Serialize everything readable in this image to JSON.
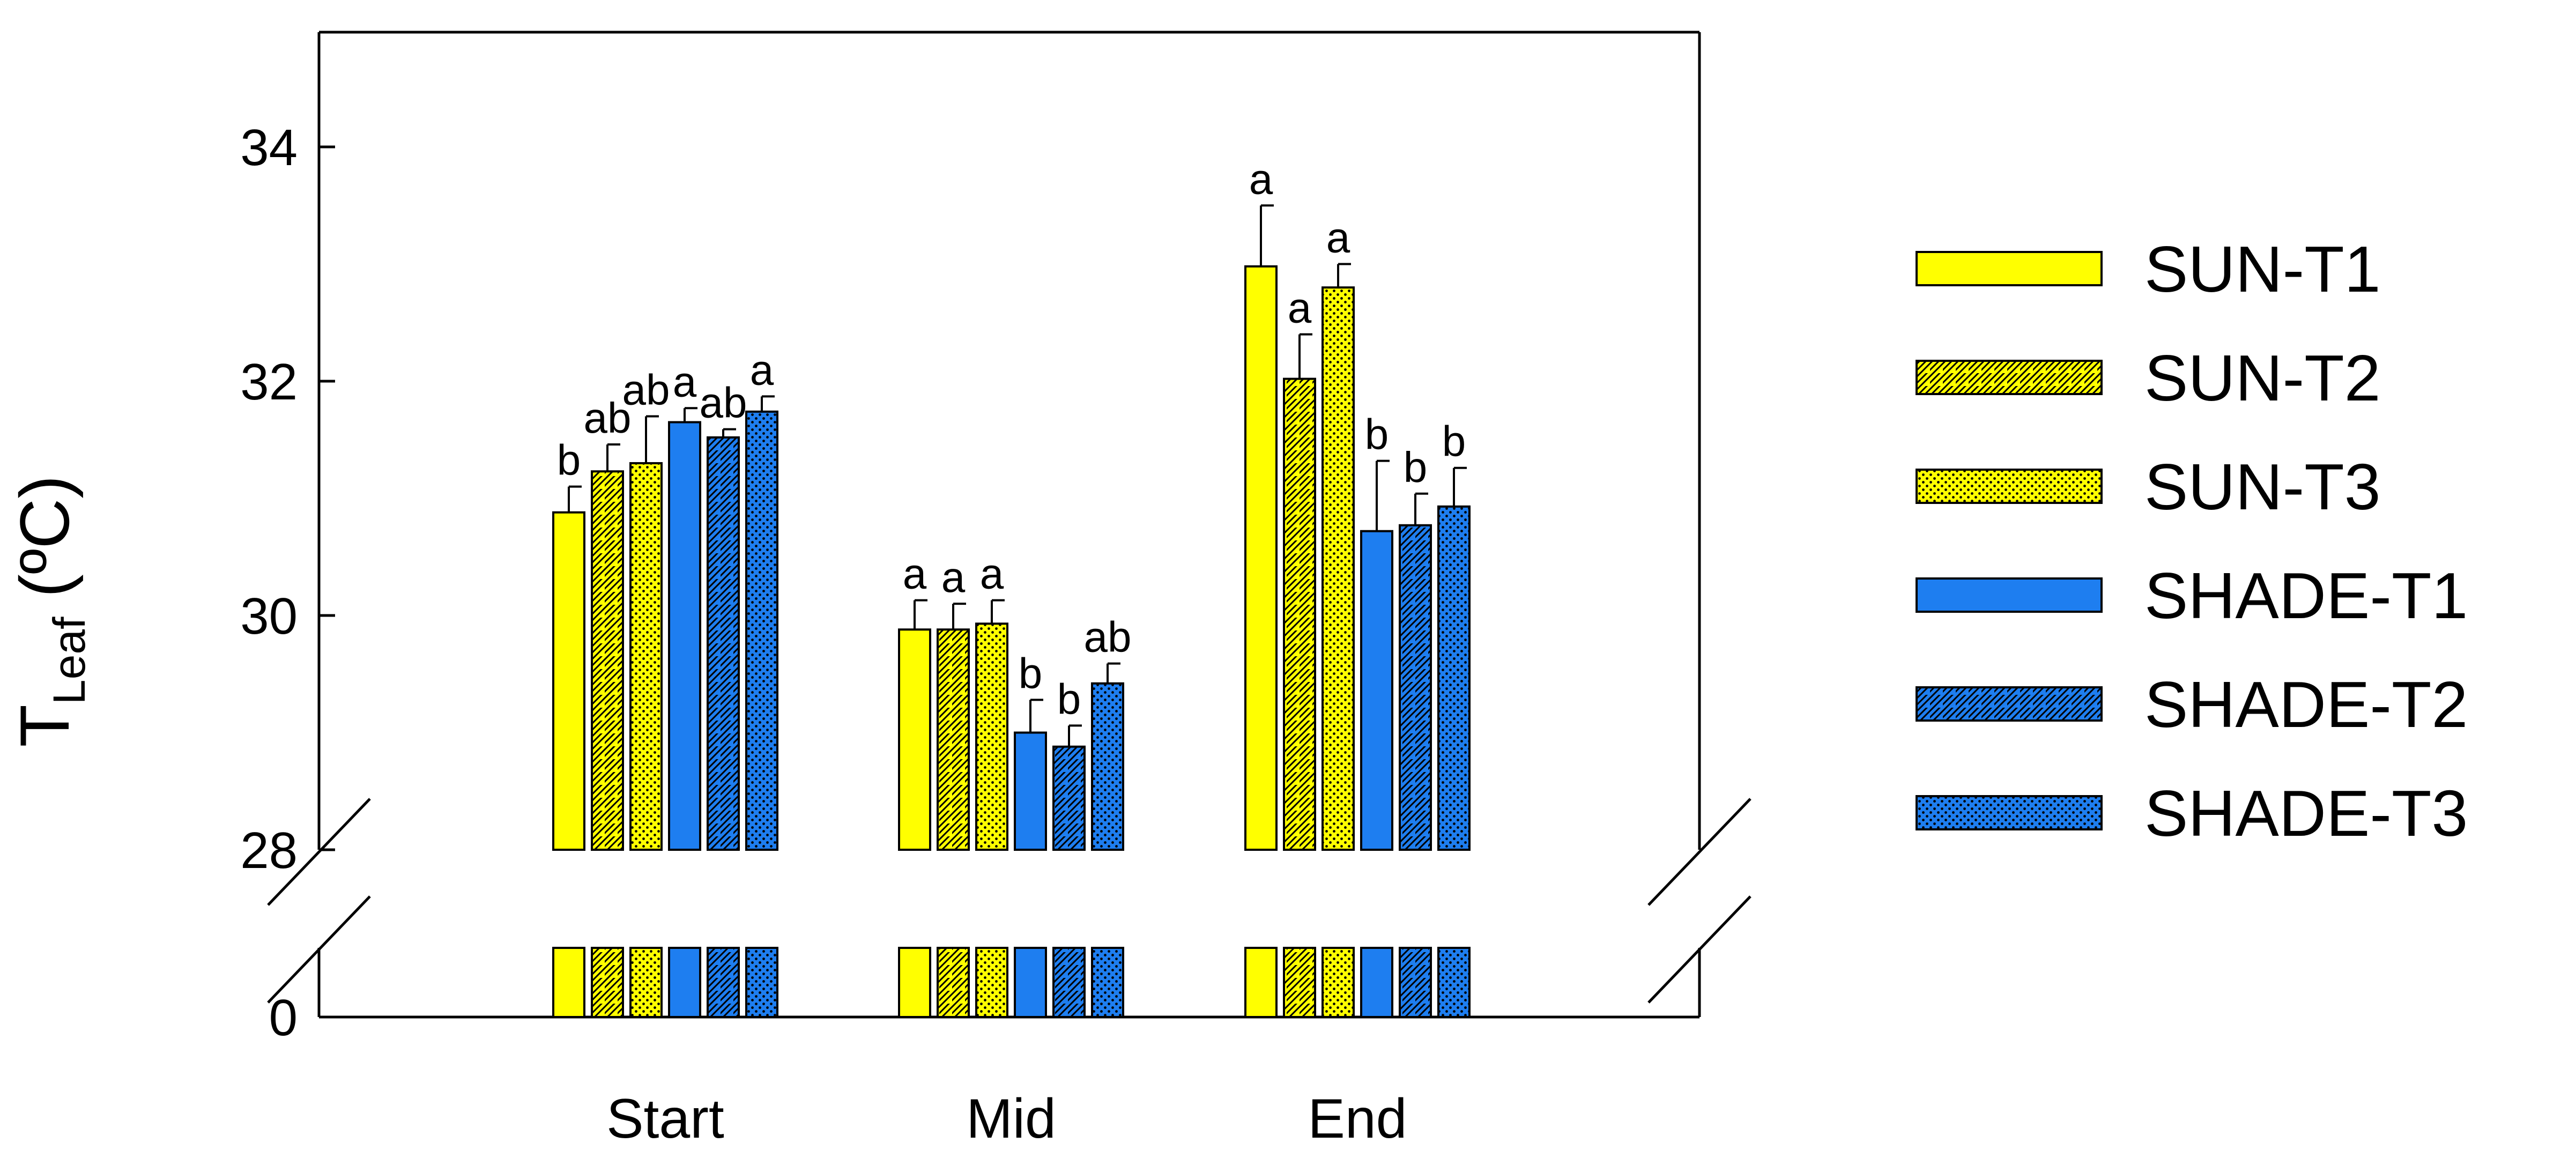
{
  "chart_data": {
    "type": "bar",
    "title": "",
    "xlabel": "",
    "ylabel": {
      "main": "T",
      "subscript": "Leaf",
      "unit": " (ºC)"
    },
    "categories": [
      "Start",
      "Mid",
      "End"
    ],
    "ylim": [
      28,
      35
    ],
    "y_break": {
      "lower_value": 0
    },
    "y_ticks": [
      "28",
      "30",
      "32",
      "34"
    ],
    "y_tick_break_label": "0",
    "grid": false,
    "legend_position": "right",
    "series": [
      {
        "name": "SUN-T1",
        "color": "#ffff00",
        "pattern": "solid",
        "values": [
          30.88,
          29.88,
          32.98
        ],
        "errors": [
          0.22,
          0.25,
          0.52
        ],
        "letters": [
          "b",
          "a",
          "a"
        ]
      },
      {
        "name": "SUN-T2",
        "color": "#ffff00",
        "pattern": "hatch",
        "values": [
          31.23,
          29.88,
          32.02
        ],
        "errors": [
          0.23,
          0.22,
          0.38
        ],
        "letters": [
          "ab",
          "a",
          "a"
        ]
      },
      {
        "name": "SUN-T3",
        "color": "#ffff00",
        "pattern": "dots",
        "values": [
          31.3,
          29.93,
          32.8
        ],
        "errors": [
          0.4,
          0.2,
          0.2
        ],
        "letters": [
          "ab",
          "a",
          "a"
        ]
      },
      {
        "name": "SHADE-T1",
        "color": "#1e7ef0",
        "pattern": "solid",
        "values": [
          31.65,
          29.0,
          30.72
        ],
        "errors": [
          0.12,
          0.28,
          0.6
        ],
        "letters": [
          "a",
          "b",
          "b"
        ]
      },
      {
        "name": "SHADE-T2",
        "color": "#1e7ef0",
        "pattern": "hatch",
        "values": [
          31.52,
          28.88,
          30.77
        ],
        "errors": [
          0.07,
          0.18,
          0.27
        ],
        "letters": [
          "ab",
          "b",
          "b"
        ]
      },
      {
        "name": "SHADE-T3",
        "color": "#1e7ef0",
        "pattern": "dots",
        "values": [
          31.74,
          29.42,
          30.93
        ],
        "errors": [
          0.13,
          0.17,
          0.33
        ],
        "letters": [
          "a",
          "ab",
          "b"
        ]
      }
    ]
  }
}
